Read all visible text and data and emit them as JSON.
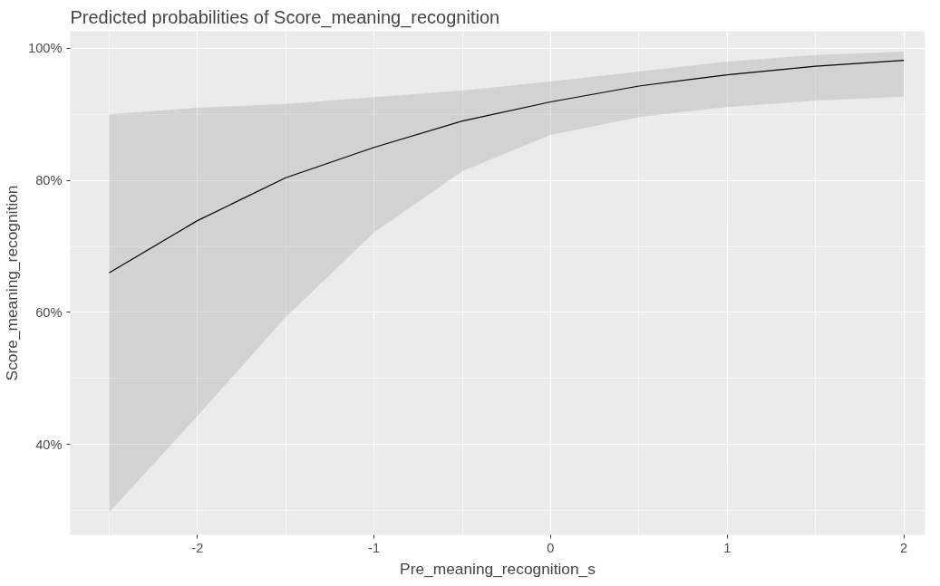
{
  "chart_data": {
    "type": "line",
    "title": "Predicted probabilities of Score_meaning_recognition",
    "xlabel": "Pre_meaning_recognition_s",
    "ylabel": "Score_meaning_recognition",
    "x": [
      -2.5,
      -2,
      -1.5,
      -1,
      -0.5,
      0,
      0.5,
      1,
      1.5,
      2
    ],
    "series": [
      {
        "color": "#000000",
        "values": [
          66,
          73.9,
          80.4,
          85,
          89,
          91.9,
          94.3,
          96,
          97.3,
          98.2
        ],
        "lower": [
          29.7,
          44.3,
          59.3,
          72.1,
          81.4,
          86.9,
          89.6,
          91.1,
          92.1,
          92.7
        ],
        "upper": [
          90,
          91,
          91.6,
          92.6,
          93.6,
          95,
          96.5,
          98,
          99,
          99.5
        ]
      }
    ],
    "xlim": [
      -2.72,
      2.12
    ],
    "ylim": [
      26.3,
      102.6
    ],
    "xticks": [
      -2,
      -1,
      0,
      1,
      2
    ],
    "yticks": [
      {
        "value": 40,
        "label": "40%"
      },
      {
        "value": 60,
        "label": "60%"
      },
      {
        "value": 80,
        "label": "80%"
      },
      {
        "value": 100,
        "label": "100%"
      }
    ],
    "grid": true,
    "marker": "none",
    "line_style": "solid"
  }
}
